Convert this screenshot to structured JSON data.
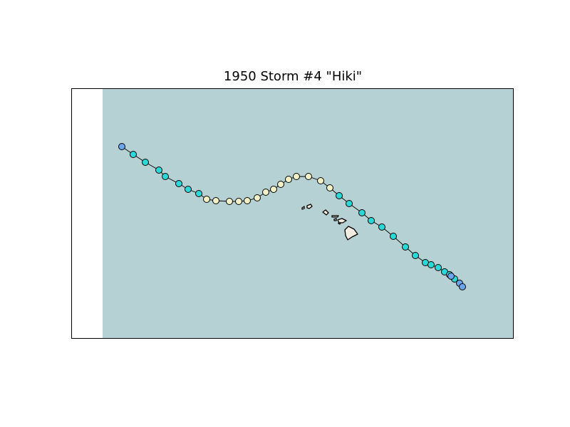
{
  "title": "1950 Storm #4 \"Hiki\"",
  "colors": {
    "ocean": "#b6d1d3",
    "land": "#f1ece1",
    "track_line": "#000000",
    "depression": "#6aa6f0",
    "tropical_storm": "#2ad8d8",
    "hurricane": "#f2f0c7"
  },
  "track": [
    {
      "cat": "depression"
    },
    {
      "cat": "tropical_storm"
    },
    {
      "cat": "tropical_storm"
    },
    {
      "cat": "tropical_storm"
    },
    {
      "cat": "tropical_storm"
    },
    {
      "cat": "tropical_storm"
    },
    {
      "cat": "tropical_storm"
    },
    {
      "cat": "tropical_storm"
    },
    {
      "cat": "hurricane"
    },
    {
      "cat": "hurricane"
    },
    {
      "cat": "hurricane"
    },
    {
      "cat": "hurricane"
    },
    {
      "cat": "hurricane"
    },
    {
      "cat": "hurricane"
    },
    {
      "cat": "hurricane"
    },
    {
      "cat": "hurricane"
    },
    {
      "cat": "hurricane"
    },
    {
      "cat": "hurricane"
    },
    {
      "cat": "hurricane"
    },
    {
      "cat": "hurricane"
    },
    {
      "cat": "hurricane"
    },
    {
      "cat": "hurricane"
    },
    {
      "cat": "tropical_storm"
    },
    {
      "cat": "tropical_storm"
    },
    {
      "cat": "tropical_storm"
    },
    {
      "cat": "tropical_storm"
    },
    {
      "cat": "tropical_storm"
    },
    {
      "cat": "tropical_storm"
    },
    {
      "cat": "tropical_storm"
    },
    {
      "cat": "tropical_storm"
    },
    {
      "cat": "tropical_storm"
    },
    {
      "cat": "tropical_storm"
    },
    {
      "cat": "tropical_storm"
    },
    {
      "cat": "tropical_storm"
    },
    {
      "cat": "tropical_storm"
    },
    {
      "cat": "tropical_storm"
    },
    {
      "cat": "depression"
    },
    {
      "cat": "depression"
    },
    {
      "cat": "depression"
    }
  ]
}
